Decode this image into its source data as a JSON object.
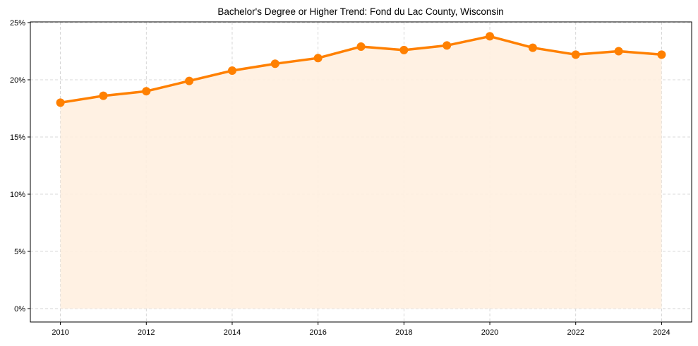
{
  "chart_data": {
    "type": "area",
    "title": "Bachelor's Degree or Higher Trend: Fond du Lac County, Wisconsin",
    "xlabel": "",
    "ylabel": "",
    "x": [
      2010,
      2011,
      2012,
      2013,
      2014,
      2015,
      2016,
      2017,
      2018,
      2019,
      2020,
      2021,
      2022,
      2023,
      2024
    ],
    "values": [
      18.0,
      18.6,
      19.0,
      19.9,
      20.8,
      21.4,
      21.9,
      22.9,
      22.6,
      23.0,
      23.8,
      22.8,
      22.2,
      22.5,
      22.2
    ],
    "xlim": [
      2009.3,
      2024.7
    ],
    "ylim": [
      -1.17,
      25.06
    ],
    "xticks": [
      2010,
      2012,
      2014,
      2016,
      2018,
      2020,
      2022,
      2024
    ],
    "yticks": [
      0,
      5,
      10,
      15,
      20,
      25
    ],
    "ytick_labels": [
      "0%",
      "5%",
      "10%",
      "15%",
      "20%",
      "25%"
    ],
    "grid": true,
    "line_color": "#ff8000",
    "fill_color": "#fff0e0"
  }
}
